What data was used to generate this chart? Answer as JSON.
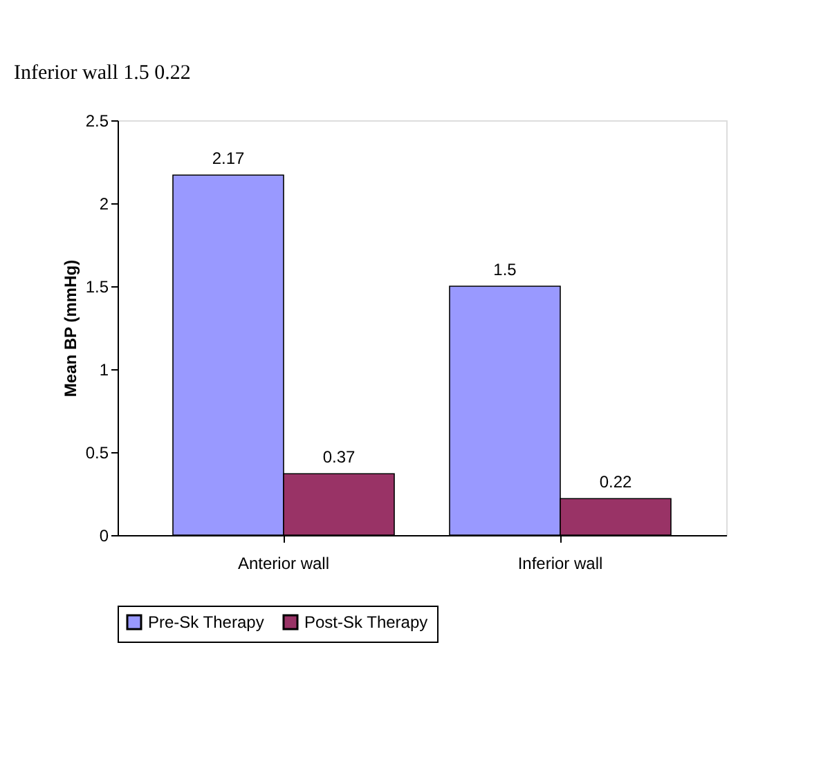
{
  "chart_data": {
    "type": "bar",
    "categories": [
      "Anterior wall",
      "Inferior wall"
    ],
    "series": [
      {
        "name": "Pre-Sk Therapy",
        "color": "#9999ff",
        "values": [
          2.17,
          1.5
        ]
      },
      {
        "name": "Post-Sk Therapy",
        "color": "#993366",
        "values": [
          0.37,
          0.22
        ]
      }
    ],
    "ylabel": "Mean BP (mmHg)",
    "ylim": [
      0,
      2.5
    ],
    "yticks": [
      0,
      0.5,
      1,
      1.5,
      2,
      2.5
    ],
    "data_labels": true,
    "grid": false,
    "legend": "bottom",
    "annotations": [
      "Inferior wall                1.5              0.22"
    ]
  }
}
